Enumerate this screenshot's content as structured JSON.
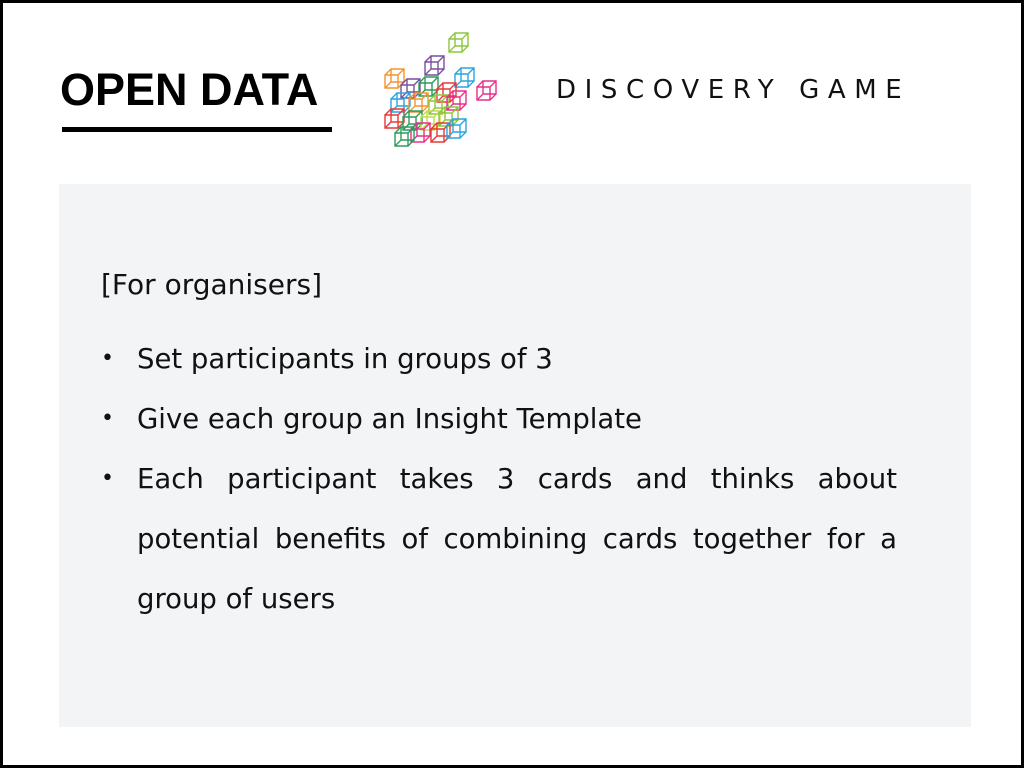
{
  "header": {
    "title": "OPEN DATA",
    "subtitle": "DISCOVERY GAME"
  },
  "logo": {
    "icon": "cube-cluster-logo",
    "colors": [
      "#f29431",
      "#8dc63f",
      "#2ea4dc",
      "#e6308a",
      "#7b4fa0",
      "#2a9d5c",
      "#e53935",
      "#c8d74a"
    ]
  },
  "content": {
    "heading": "[For organisers]",
    "bullets": [
      "Set participants in groups of 3",
      "Give each group an Insight Template",
      "Each participant takes 3 cards and thinks about potential benefits of combining cards together for a group of users"
    ],
    "bullet_glyph": "•"
  },
  "colors": {
    "panel_background": "#f3f4f5",
    "border": "#000000",
    "text": "#111111"
  }
}
